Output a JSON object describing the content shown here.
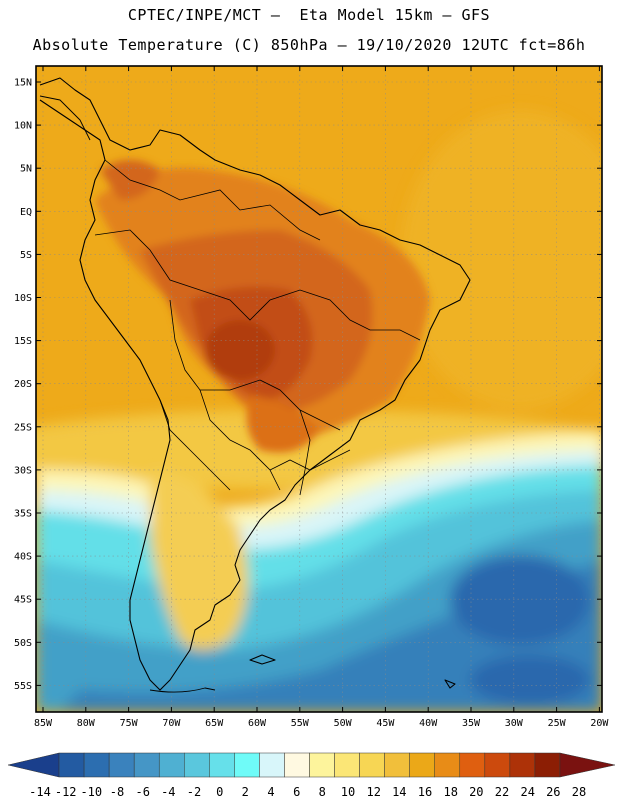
{
  "header": {
    "line1": "CPTEC/INPE/MCT –  Eta Model 15km – GFS",
    "line2": "Absolute Temperature (C) 850hPa – 19/10/2020 12UTC fct=86h"
  },
  "map": {
    "lat_labels": [
      "15N",
      "10N",
      "5N",
      "EQ",
      "5S",
      "10S",
      "15S",
      "20S",
      "25S",
      "30S",
      "35S",
      "40S",
      "45S",
      "50S",
      "55S"
    ],
    "lon_labels": [
      "85W",
      "80W",
      "75W",
      "70W",
      "65W",
      "60W",
      "55W",
      "50W",
      "45W",
      "40W",
      "35W",
      "30W",
      "25W",
      "20W"
    ]
  },
  "colorbar": {
    "labels": [
      "-14",
      "-12",
      "-10",
      "-8",
      "-6",
      "-4",
      "-2",
      "0",
      "2",
      "4",
      "6",
      "8",
      "10",
      "12",
      "14",
      "16",
      "18",
      "20",
      "22",
      "24",
      "26",
      "28"
    ],
    "colors": [
      "#1a3f8c",
      "#235ba2",
      "#2c6eb0",
      "#3a82bd",
      "#4596c6",
      "#4fb0d2",
      "#5ac7dd",
      "#66e0ea",
      "#6ffbf8",
      "#d8f6fa",
      "#fff9e1",
      "#fdf49c",
      "#fbe676",
      "#f7d654",
      "#f1bf3b",
      "#eba818",
      "#e88c17",
      "#df5f10",
      "#cc4a0d",
      "#ad3208",
      "#8c1e04",
      "#7a1210"
    ]
  }
}
